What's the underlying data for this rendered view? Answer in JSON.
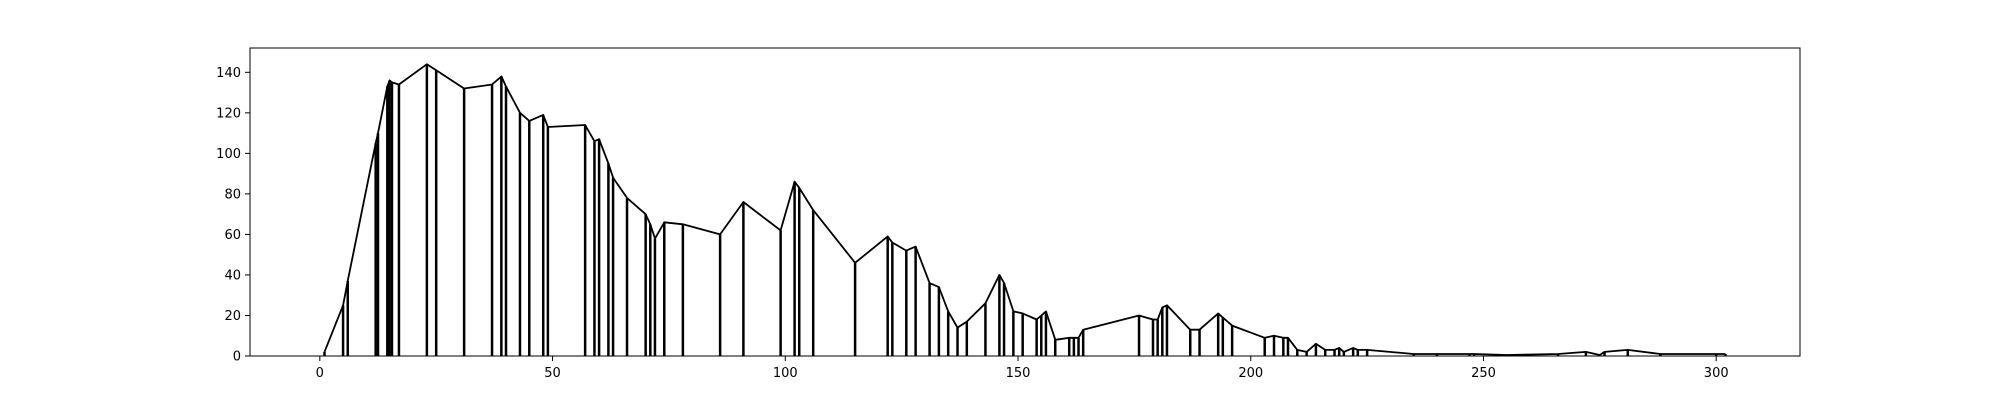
{
  "chart_data": {
    "type": "line",
    "title": "",
    "xlabel": "",
    "ylabel": "",
    "xlim": [
      -15,
      318
    ],
    "ylim": [
      0,
      152
    ],
    "xticks": [
      0,
      50,
      100,
      150,
      200,
      250,
      300
    ],
    "yticks": [
      0,
      20,
      40,
      60,
      80,
      100,
      120,
      140
    ],
    "xtick_labels": [
      "0",
      "50",
      "100",
      "150",
      "200",
      "250",
      "300"
    ],
    "ytick_labels": [
      "0",
      "20",
      "40",
      "60",
      "80",
      "100",
      "120",
      "140"
    ],
    "grid": false,
    "legend": "none",
    "line_color": "#000000",
    "series": [
      {
        "x": [
          1,
          5,
          6,
          12,
          12.5,
          14.5,
          15,
          15.5,
          17,
          23,
          25,
          31,
          37,
          39,
          40,
          43,
          45,
          48,
          49,
          57,
          59,
          60,
          62,
          63,
          66,
          70,
          71,
          72,
          74,
          78,
          86,
          91,
          99,
          102,
          103,
          106,
          115,
          122,
          123,
          126,
          128,
          131,
          133,
          135,
          137,
          139,
          143,
          146,
          147,
          149,
          151,
          154,
          155,
          156,
          158,
          161,
          162,
          163,
          164,
          176,
          179,
          180,
          181,
          182,
          187,
          189,
          193,
          194,
          196,
          203,
          205,
          207,
          208,
          210,
          212,
          214,
          216,
          218,
          219,
          220,
          222,
          223,
          225,
          235,
          240,
          247,
          248,
          255,
          266,
          272,
          275,
          276,
          281,
          288,
          300,
          302
        ],
        "y": [
          2,
          25,
          37,
          105,
          110,
          133,
          136,
          135,
          134,
          144,
          141,
          132,
          134,
          138,
          133,
          120,
          116,
          119,
          113,
          114,
          106,
          107,
          95,
          88,
          78,
          70,
          65,
          58,
          66,
          65,
          60,
          76,
          62,
          86,
          83,
          72,
          46,
          59,
          56,
          52,
          54,
          36,
          34,
          22,
          14,
          17,
          26,
          40,
          36,
          22,
          21,
          18,
          20,
          22,
          8,
          9,
          9,
          9,
          13,
          20,
          18,
          18,
          24,
          25,
          13,
          13,
          21,
          19,
          15,
          9,
          10,
          9,
          9,
          3,
          2,
          6,
          3,
          3,
          4,
          2,
          4,
          3,
          3,
          1,
          1,
          1,
          1,
          0.5,
          1,
          2,
          0.5,
          2,
          3,
          1,
          1,
          1
        ]
      }
    ]
  }
}
